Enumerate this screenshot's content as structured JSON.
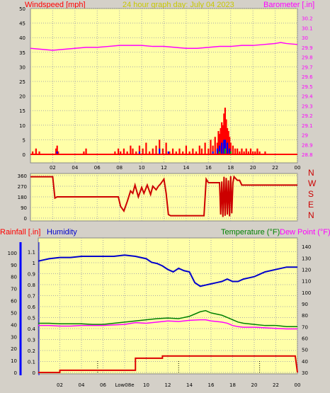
{
  "header": {
    "wind_title": "Windspeed [mph]",
    "center_title": "24 hour graph day:  July 04 2023",
    "baro_title": "Barometer [.in]"
  },
  "compass_letters": [
    "N",
    "W",
    "S",
    "E",
    "N"
  ],
  "bottom_header": {
    "rainfall": "Rainfall [.in]",
    "humidity": "Humidity",
    "temperature": "Temperature (°F)",
    "dewpoint": "Dew Point (°F)"
  },
  "colors": {
    "panel_bg": "#ffffa8",
    "window_bg": "#d4d0c8",
    "wind": "#ff0000",
    "gust": "#0000ff",
    "wind_low": "#00aa00",
    "baro": "#ff00ff",
    "dir": "#cc0000",
    "humidity": "#0000cc",
    "temp": "#008000",
    "dew": "#ff00ff",
    "rain": "#dd0000",
    "title": "#c8c800"
  },
  "chart_data": [
    {
      "type": "bar",
      "title": "24 hour graph day:  July 04 2023",
      "ylabel": "Windspeed [mph]",
      "y2label": "Barometer [.in]",
      "x_ticks": [
        "02",
        "04",
        "06",
        "08",
        "10",
        "12",
        "14",
        "16",
        "18",
        "20",
        "22",
        "00"
      ],
      "ylim": [
        0,
        50
      ],
      "y_ticks": [
        0,
        5,
        10,
        15,
        20,
        25,
        30,
        35,
        40,
        45,
        50
      ],
      "y2lim": [
        28.8,
        30.3
      ],
      "y2_ticks": [
        "28.8",
        "28.9",
        "29",
        "29.1",
        "29.2",
        "29.3",
        "29.4",
        "29.5",
        "29.6",
        "29.7",
        "29.8",
        "29.9",
        "30",
        "30.1",
        "30.2"
      ],
      "grid": true,
      "series": [
        {
          "kind": "wind_speed",
          "x": [
            0.2,
            0.5,
            0.8,
            2.3,
            2.4,
            2.5,
            4.8,
            5.0,
            7.6,
            7.9,
            8.1,
            8.4,
            8.7,
            9.0,
            9.2,
            9.5,
            9.8,
            10.1,
            10.4,
            10.7,
            11.0,
            11.3,
            11.6,
            11.9,
            12.2,
            12.5,
            12.8,
            13.1,
            13.4,
            13.7,
            14.0,
            14.3,
            14.6,
            14.9,
            15.2,
            15.4,
            15.7,
            16.0,
            16.2,
            16.4,
            16.6,
            16.8,
            16.9,
            17.0,
            17.1,
            17.2,
            17.3,
            17.4,
            17.5,
            17.6,
            17.7,
            17.8,
            17.9,
            18.0,
            18.2,
            18.4,
            18.6,
            18.8,
            19.0,
            19.2,
            19.4,
            19.6,
            19.8,
            20.0,
            20.2,
            20.4,
            20.6,
            21.1
          ],
          "values": [
            1,
            2,
            1,
            2,
            3,
            1,
            1,
            2,
            1,
            2,
            1,
            2,
            1,
            3,
            2,
            1,
            3,
            2,
            4,
            1,
            2,
            3,
            5,
            2,
            4,
            1,
            2,
            1,
            2,
            1,
            3,
            1,
            2,
            1,
            3,
            2,
            4,
            2,
            5,
            3,
            6,
            4,
            8,
            7,
            9,
            11,
            10,
            14,
            16,
            12,
            9,
            8,
            6,
            4,
            3,
            2,
            2,
            1,
            2,
            1,
            2,
            1,
            2,
            1,
            1,
            2,
            1,
            1
          ]
        },
        {
          "kind": "wind_gust",
          "x": [
            2.4,
            9.8,
            11.6,
            12.4,
            16.4,
            16.8,
            17.0,
            17.2,
            17.4,
            17.5,
            17.7,
            17.9
          ],
          "values": [
            1,
            1,
            2,
            1,
            1,
            2,
            3,
            4,
            5,
            5,
            4,
            2
          ]
        },
        {
          "kind": "wind_low",
          "x": [
            17.0,
            17.5,
            18.0
          ],
          "values": [
            1,
            2,
            1
          ]
        },
        {
          "kind": "barometer",
          "x": [
            0,
            1,
            2,
            3,
            4,
            5,
            6,
            7,
            8,
            9,
            10,
            11,
            12,
            13,
            14,
            15,
            16,
            17,
            18,
            19,
            20,
            21,
            22,
            22.5,
            23,
            24
          ],
          "values": [
            29.89,
            29.88,
            29.87,
            29.88,
            29.89,
            29.9,
            29.9,
            29.91,
            29.92,
            29.92,
            29.92,
            29.91,
            29.91,
            29.9,
            29.89,
            29.89,
            29.9,
            29.91,
            29.91,
            29.92,
            29.92,
            29.93,
            29.94,
            29.95,
            29.94,
            29.93
          ]
        }
      ]
    },
    {
      "type": "line",
      "ylabel": "Wind direction",
      "ylim": [
        0,
        360
      ],
      "y_ticks": [
        0,
        90,
        180,
        270,
        360
      ],
      "x_ticks": [
        "02",
        "04",
        "06",
        "08",
        "10",
        "12",
        "14",
        "16",
        "18",
        "20",
        "22",
        "00"
      ],
      "series": [
        {
          "kind": "wind_direction",
          "x": [
            0,
            2.0,
            2.2,
            2.4,
            7.9,
            8.1,
            8.4,
            8.7,
            9.0,
            9.2,
            9.4,
            9.7,
            10.0,
            10.2,
            10.5,
            10.8,
            11.0,
            11.3,
            11.5,
            11.7,
            12.0,
            12.2,
            12.4,
            12.6,
            12.8,
            13.2,
            15.4,
            15.6,
            15.8,
            16.0,
            16.4,
            17.0,
            17.1,
            17.2,
            17.3,
            17.4,
            17.5,
            17.6,
            17.7,
            17.8,
            17.9,
            18.0,
            18.1,
            18.2,
            18.3,
            18.4,
            18.6,
            18.8,
            19.0,
            20.0,
            24
          ],
          "values": [
            350,
            350,
            170,
            180,
            180,
            100,
            60,
            140,
            230,
            210,
            280,
            180,
            260,
            210,
            280,
            200,
            270,
            240,
            270,
            290,
            330,
            210,
            30,
            20,
            20,
            20,
            20,
            20,
            330,
            300,
            300,
            300,
            30,
            310,
            10,
            350,
            20,
            340,
            30,
            320,
            15,
            355,
            40,
            300,
            350,
            340,
            320,
            320,
            280,
            280,
            280
          ]
        }
      ]
    },
    {
      "type": "line",
      "ylabel": "Rainfall [.in]",
      "y2label": "Temperature (°F)",
      "x_ticks": [
        "02",
        "04",
        "06",
        "Low08e",
        "10",
        "12",
        "14",
        "16",
        "18",
        "20",
        "22",
        "00"
      ],
      "ylim": [
        0,
        1.2
      ],
      "y_ticks": [
        "0",
        "0.1",
        "0.2",
        "0.3",
        "0.4",
        "0.5",
        "0.6",
        "0.7",
        "0.8",
        "0.9",
        "1",
        "1.1"
      ],
      "y2lim": [
        30,
        145
      ],
      "y2_ticks": [
        30,
        40,
        50,
        60,
        70,
        80,
        90,
        100,
        110,
        120,
        130,
        140
      ],
      "left_ticks": [
        0,
        10,
        20,
        30,
        40,
        50,
        60,
        70,
        80,
        90,
        100
      ],
      "series": [
        {
          "kind": "rainfall",
          "name": "Rainfall [.in]",
          "x": [
            0,
            2.0,
            2.0,
            8.5,
            9.0,
            9.0,
            11.5,
            11.5,
            23.8,
            24
          ],
          "values": [
            0,
            0,
            0.02,
            0.02,
            0.02,
            0.13,
            0.13,
            0.15,
            0.15,
            0
          ]
        },
        {
          "kind": "humidity",
          "name": "Humidity",
          "x": [
            0,
            0.5,
            1,
            2,
            3,
            4,
            5,
            6,
            7,
            8,
            9,
            10,
            10.5,
            11,
            11.5,
            12,
            12.5,
            13,
            13.5,
            14,
            14.5,
            15,
            15.5,
            16,
            16.5,
            17,
            17.5,
            18,
            18.5,
            19,
            19.5,
            20,
            20.5,
            21,
            22,
            23,
            24
          ],
          "values": [
            93,
            94,
            95,
            96,
            96,
            97,
            97,
            97,
            97,
            98,
            97,
            95,
            92,
            91,
            89,
            86,
            84,
            87,
            85,
            84,
            75,
            72,
            73,
            74,
            75,
            76,
            78,
            76,
            76,
            78,
            79,
            80,
            82,
            84,
            86,
            88,
            88
          ]
        },
        {
          "kind": "temperature",
          "name": "Temperature (°F)",
          "x": [
            0,
            1,
            2,
            3,
            4,
            5,
            6,
            7,
            8,
            9,
            10,
            11,
            12,
            13,
            14,
            15,
            15.5,
            16,
            16.5,
            17,
            17.5,
            18,
            18.5,
            19,
            20,
            21,
            22,
            23,
            24
          ],
          "values": [
            73,
            73,
            72.5,
            72.5,
            72.5,
            72,
            72,
            73,
            74,
            75,
            76,
            77,
            77.5,
            77,
            79,
            83,
            84,
            82,
            81,
            80,
            78,
            76,
            74,
            73,
            72,
            71,
            71,
            70,
            70
          ]
        },
        {
          "kind": "dew_point",
          "name": "Dew Point (°F)",
          "x": [
            0,
            1,
            2,
            3,
            4,
            5,
            6,
            7,
            8,
            9,
            10,
            11,
            12,
            13,
            14,
            15,
            15.5,
            16,
            16.5,
            17,
            17.5,
            18,
            18.5,
            19,
            20,
            21,
            22,
            23,
            24
          ],
          "values": [
            71,
            71,
            70.5,
            70.5,
            71,
            71,
            71,
            71.5,
            72,
            73.5,
            73,
            74,
            75,
            74.5,
            75.5,
            76,
            76,
            75,
            74.5,
            74,
            73,
            71,
            70,
            69.5,
            69.5,
            69,
            68.5,
            68,
            68
          ]
        }
      ]
    }
  ]
}
